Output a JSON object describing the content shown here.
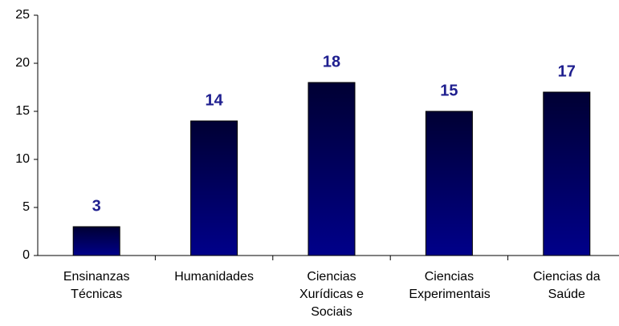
{
  "chart_data": {
    "type": "bar",
    "categories": [
      "Ensinanzas Técnicas",
      "Humanidades",
      "Ciencias Xurídicas e Sociais",
      "Ciencias Experimentais",
      "Ciencias da Saúde"
    ],
    "values": [
      3,
      14,
      18,
      15,
      17
    ],
    "color": [
      "#000033",
      "#00008a"
    ],
    "ylim": [
      0,
      25
    ],
    "yticks": [
      0,
      5,
      10,
      15,
      20,
      25
    ],
    "grid": false
  }
}
